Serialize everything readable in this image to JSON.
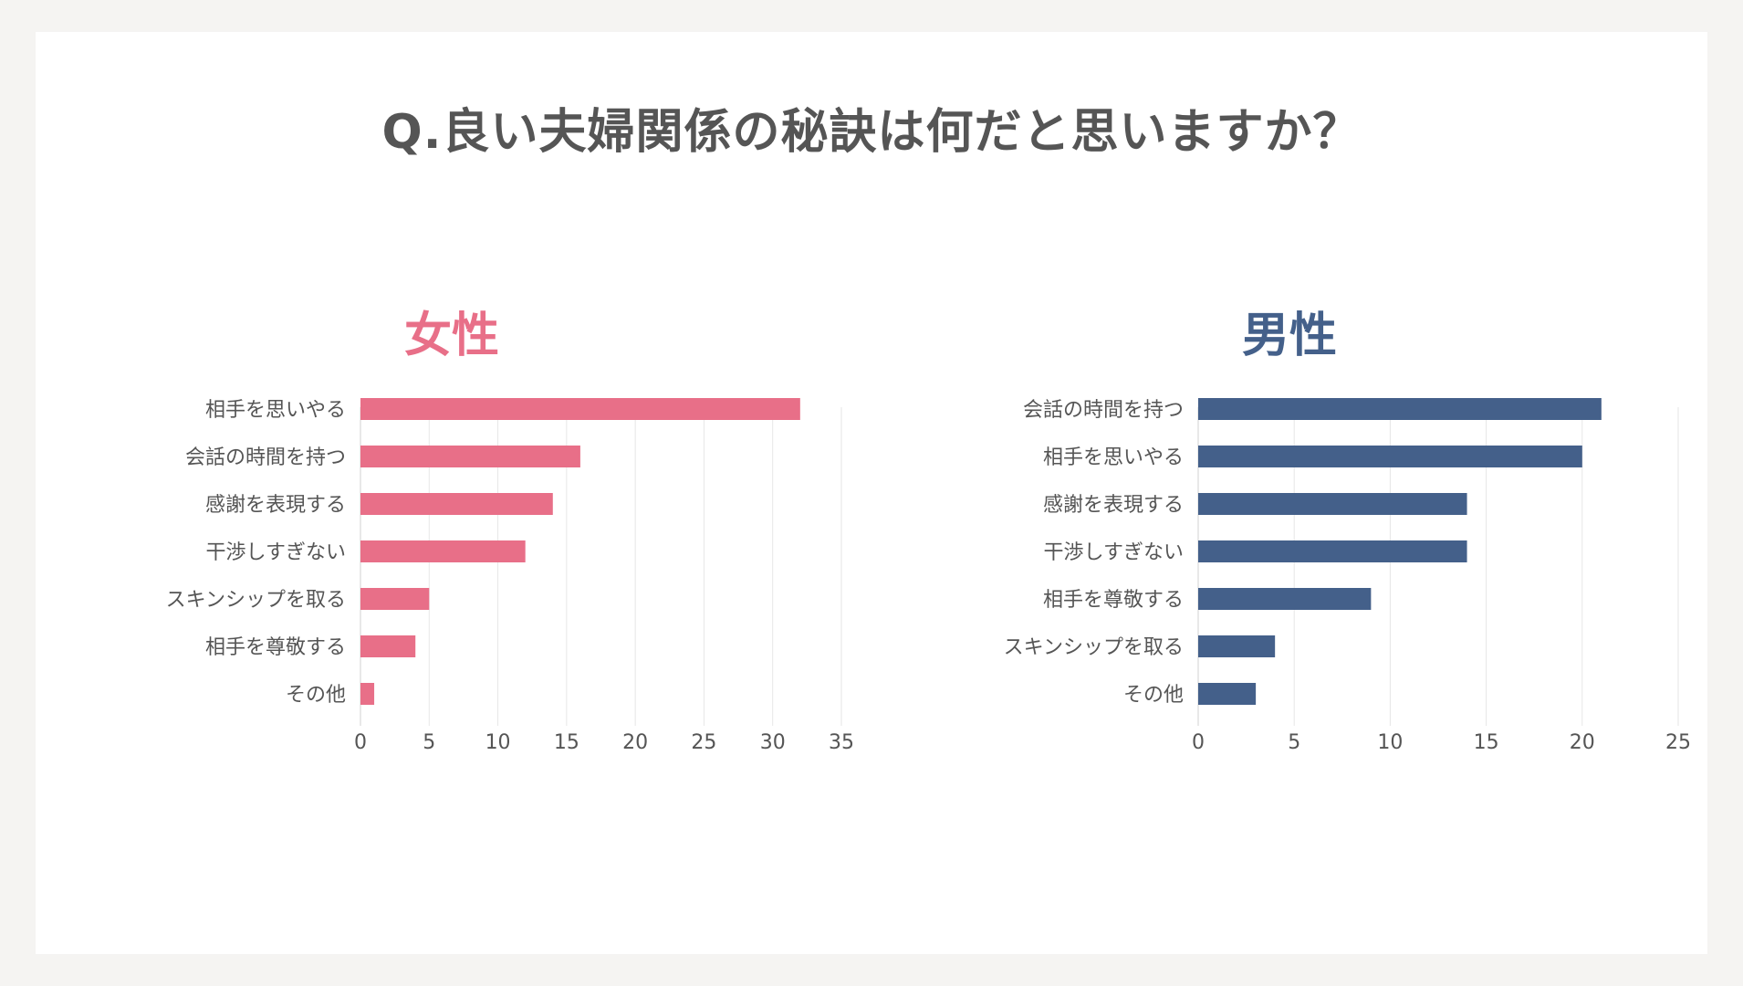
{
  "title": "Q.良い夫婦関係の秘訣は何だと思いますか？",
  "colors": {
    "female": "#e86f88",
    "male": "#44608a",
    "text": "#555555",
    "grid": "#e6e6e6"
  },
  "chart_data": [
    {
      "type": "bar",
      "orientation": "horizontal",
      "title": "女性",
      "categories": [
        "相手を思いやる",
        "会話の時間を持つ",
        "感謝を表現する",
        "干渉しすぎない",
        "スキンシップを取る",
        "相手を尊敬する",
        "その他"
      ],
      "values": [
        32,
        16,
        14,
        12,
        5,
        4,
        1
      ],
      "xlim": [
        0,
        35
      ],
      "xticks": [
        0,
        5,
        10,
        15,
        20,
        25,
        30,
        35
      ],
      "grid": true,
      "color": "#e86f88"
    },
    {
      "type": "bar",
      "orientation": "horizontal",
      "title": "男性",
      "categories": [
        "会話の時間を持つ",
        "相手を思いやる",
        "感謝を表現する",
        "干渉しすぎない",
        "相手を尊敬する",
        "スキンシップを取る",
        "その他"
      ],
      "values": [
        21,
        20,
        14,
        14,
        9,
        4,
        3
      ],
      "xlim": [
        0,
        25
      ],
      "xticks": [
        0,
        5,
        10,
        15,
        20,
        25
      ],
      "grid": true,
      "color": "#44608a"
    }
  ]
}
